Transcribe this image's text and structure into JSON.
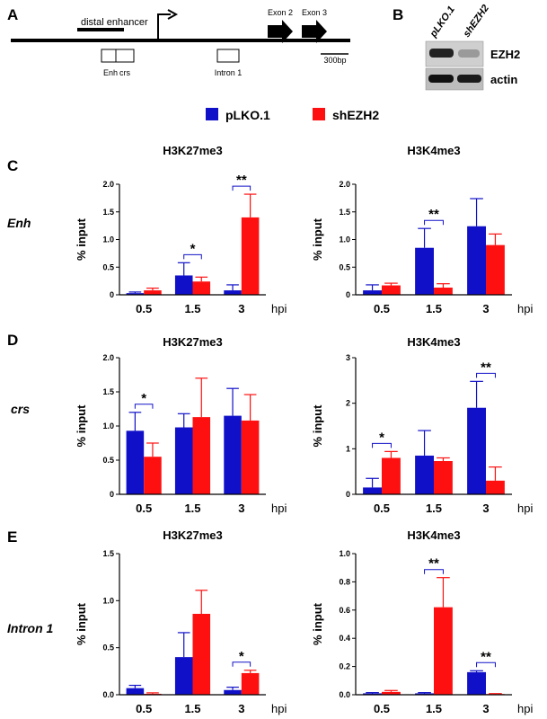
{
  "panels": {
    "A": "A",
    "B": "B",
    "C": "C",
    "D": "D",
    "E": "E"
  },
  "diagram": {
    "distal_label": "distal enhancer",
    "enh_label": "Enh",
    "crs_label": "crs",
    "intron_label": "Intron 1",
    "exon2_label": "Exon 2",
    "exon3_label": "Exon 3",
    "scale_label": "300bp"
  },
  "blot": {
    "lanes": [
      "pLKO.1",
      "shEZH2"
    ],
    "rows": [
      "EZH2",
      "actin"
    ]
  },
  "legend": [
    {
      "name": "pLKO.1",
      "color": "#1010c8"
    },
    {
      "name": "shEZH2",
      "color": "#ff1010"
    }
  ],
  "axis_text": {
    "ylabel": "% input",
    "xunit": "hpi"
  },
  "chart_data": [
    {
      "id": "C-left",
      "type": "bar",
      "row": "Enh",
      "title": "H3K27me3",
      "categories": [
        "0.5",
        "1.5",
        "3"
      ],
      "ylim": [
        0,
        2.0
      ],
      "yticks": [
        "0",
        "0.5",
        "1.0",
        "1.5",
        "2.0"
      ],
      "series": [
        {
          "name": "pLKO.1",
          "values": [
            0.03,
            0.35,
            0.08
          ],
          "errors": [
            0.02,
            0.23,
            0.1
          ]
        },
        {
          "name": "shEZH2",
          "values": [
            0.08,
            0.24,
            1.4
          ],
          "errors": [
            0.04,
            0.08,
            0.42
          ]
        }
      ],
      "annotations": [
        {
          "group": 1,
          "label": "*"
        },
        {
          "group": 2,
          "label": "**"
        }
      ]
    },
    {
      "id": "C-right",
      "type": "bar",
      "row": "Enh",
      "title": "H3K4me3",
      "categories": [
        "0.5",
        "1.5",
        "3"
      ],
      "ylim": [
        0,
        2.0
      ],
      "yticks": [
        "0",
        "0.5",
        "1.0",
        "1.5",
        "2.0"
      ],
      "series": [
        {
          "name": "pLKO.1",
          "values": [
            0.08,
            0.85,
            1.24
          ],
          "errors": [
            0.1,
            0.35,
            0.5
          ]
        },
        {
          "name": "shEZH2",
          "values": [
            0.17,
            0.13,
            0.9
          ],
          "errors": [
            0.04,
            0.07,
            0.2
          ]
        }
      ],
      "annotations": [
        {
          "group": 1,
          "label": "**"
        }
      ]
    },
    {
      "id": "D-left",
      "type": "bar",
      "row": "crs",
      "title": "H3K27me3",
      "categories": [
        "0.5",
        "1.5",
        "3"
      ],
      "ylim": [
        0,
        2.0
      ],
      "yticks": [
        "0",
        "0.5",
        "1.0",
        "1.5",
        "2.0"
      ],
      "series": [
        {
          "name": "pLKO.1",
          "values": [
            0.93,
            0.98,
            1.15
          ],
          "errors": [
            0.27,
            0.2,
            0.4
          ]
        },
        {
          "name": "shEZH2",
          "values": [
            0.55,
            1.13,
            1.08
          ],
          "errors": [
            0.2,
            0.57,
            0.38
          ]
        }
      ],
      "annotations": [
        {
          "group": 0,
          "label": "*"
        }
      ]
    },
    {
      "id": "D-right",
      "type": "bar",
      "row": "crs",
      "title": "H3K4me3",
      "categories": [
        "0.5",
        "1.5",
        "3"
      ],
      "ylim": [
        0,
        3
      ],
      "yticks": [
        "0",
        "1",
        "2",
        "3"
      ],
      "series": [
        {
          "name": "pLKO.1",
          "values": [
            0.15,
            0.85,
            1.9
          ],
          "errors": [
            0.2,
            0.55,
            0.58
          ]
        },
        {
          "name": "shEZH2",
          "values": [
            0.8,
            0.73,
            0.3
          ],
          "errors": [
            0.14,
            0.07,
            0.3
          ]
        }
      ],
      "annotations": [
        {
          "group": 0,
          "label": "*"
        },
        {
          "group": 2,
          "label": "**"
        }
      ]
    },
    {
      "id": "E-left",
      "type": "bar",
      "row": "Intron 1",
      "title": "H3K27me3",
      "categories": [
        "0.5",
        "1.5",
        "3"
      ],
      "ylim": [
        0,
        1.5
      ],
      "yticks": [
        "0.0",
        "0.5",
        "1.0",
        "1.5"
      ],
      "series": [
        {
          "name": "pLKO.1",
          "values": [
            0.07,
            0.4,
            0.05
          ],
          "errors": [
            0.03,
            0.26,
            0.03
          ]
        },
        {
          "name": "shEZH2",
          "values": [
            0.01,
            0.86,
            0.23
          ],
          "errors": [
            0.01,
            0.25,
            0.03
          ]
        }
      ],
      "annotations": [
        {
          "group": 2,
          "label": "*"
        }
      ]
    },
    {
      "id": "E-right",
      "type": "bar",
      "row": "Intron 1",
      "title": "H3K4me3",
      "categories": [
        "0.5",
        "1.5",
        "3"
      ],
      "ylim": [
        0,
        1.0
      ],
      "yticks": [
        "0.0",
        "0.2",
        "0.4",
        "0.6",
        "0.8",
        "1.0"
      ],
      "series": [
        {
          "name": "pLKO.1",
          "values": [
            0.01,
            0.01,
            0.16
          ],
          "errors": [
            0.005,
            0.005,
            0.01
          ]
        },
        {
          "name": "shEZH2",
          "values": [
            0.02,
            0.62,
            0.005
          ],
          "errors": [
            0.01,
            0.21,
            0.003
          ]
        }
      ],
      "annotations": [
        {
          "group": 1,
          "label": "**"
        },
        {
          "group": 2,
          "label": "**"
        }
      ]
    }
  ]
}
